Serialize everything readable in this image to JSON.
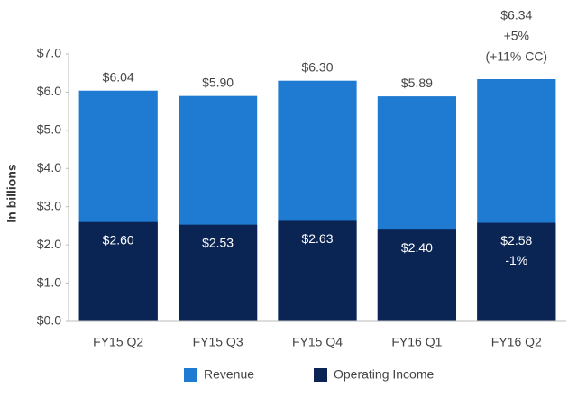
{
  "chart_data": {
    "type": "bar",
    "categories": [
      "FY15 Q2",
      "FY15 Q3",
      "FY15 Q4",
      "FY16 Q1",
      "FY16 Q2"
    ],
    "series": [
      {
        "name": "Revenue",
        "color": "#1f7bd2",
        "values": [
          6.04,
          5.9,
          6.3,
          5.89,
          6.34
        ],
        "value_labels": [
          "$6.04",
          "$5.90",
          "$6.30",
          "$5.89",
          "$6.34"
        ]
      },
      {
        "name": "Operating Income",
        "color": "#0a2554",
        "values": [
          2.6,
          2.53,
          2.63,
          2.4,
          2.58
        ],
        "value_labels": [
          "$2.60",
          "$2.53",
          "$2.63",
          "$2.40",
          "$2.58"
        ]
      }
    ],
    "y_label": "In billions",
    "ylim": [
      0,
      7
    ],
    "yticks": [
      {
        "value": 0,
        "label": "$0.0"
      },
      {
        "value": 1,
        "label": "$1.0"
      },
      {
        "value": 2,
        "label": "$2.0"
      },
      {
        "value": 3,
        "label": "$3.0"
      },
      {
        "value": 4,
        "label": "$4.0"
      },
      {
        "value": 5,
        "label": "$5.0"
      },
      {
        "value": 6,
        "label": "$6.0"
      },
      {
        "value": 7,
        "label": "$7.0"
      }
    ],
    "annotations": [
      "+5%",
      "(+11% CC)",
      "-1%"
    ],
    "grid": false,
    "legend": "bottom"
  }
}
